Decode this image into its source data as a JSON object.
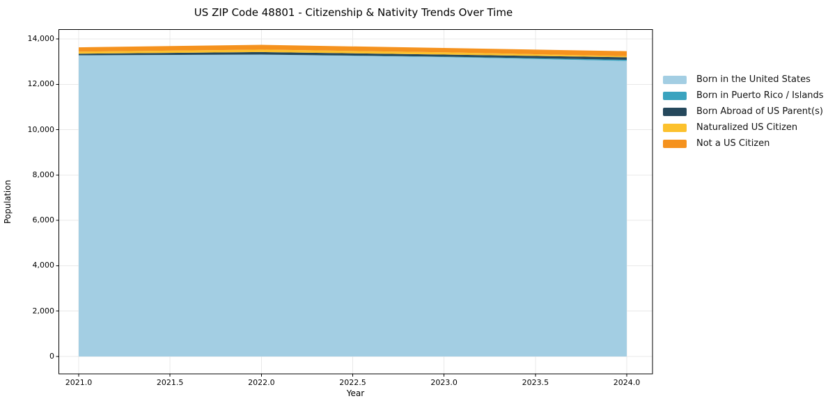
{
  "chart_data": {
    "type": "area",
    "stacked": true,
    "title": "US ZIP Code 48801 - Citizenship & Nativity Trends Over Time",
    "xlabel": "Year",
    "ylabel": "Population",
    "x": [
      2021,
      2022,
      2023,
      2024
    ],
    "series": [
      {
        "name": "Born in the United States",
        "color": "#a3cee3",
        "values": [
          13280,
          13310,
          13200,
          13030
        ]
      },
      {
        "name": "Born in Puerto Rico / Islands",
        "color": "#3aa3bf",
        "values": [
          0,
          0,
          20,
          50
        ]
      },
      {
        "name": "Born Abroad of US Parent(s)",
        "color": "#25485c",
        "values": [
          70,
          110,
          90,
          110
        ]
      },
      {
        "name": "Naturalized US Citizen",
        "color": "#fcc12d",
        "values": [
          90,
          110,
          100,
          50
        ]
      },
      {
        "name": "Not a US Citizen",
        "color": "#f5921e",
        "values": [
          190,
          210,
          190,
          220
        ]
      }
    ],
    "xtick_labels": [
      "2021.0",
      "2021.5",
      "2022.0",
      "2022.5",
      "2023.0",
      "2023.5",
      "2024.0"
    ],
    "xtick_values": [
      2021.0,
      2021.5,
      2022.0,
      2022.5,
      2023.0,
      2023.5,
      2024.0
    ],
    "ytick_labels": [
      "0",
      "2,000",
      "4,000",
      "6,000",
      "8,000",
      "10,000",
      "12,000",
      "14,000"
    ],
    "ytick_values": [
      0,
      2000,
      4000,
      6000,
      8000,
      10000,
      12000,
      14000
    ],
    "xlim": [
      2020.89,
      2024.14
    ],
    "ylim": [
      -770,
      14420
    ],
    "grid": true,
    "legend_position": "right"
  },
  "colors": {
    "grid": "#e8e8e8",
    "spine": "#000000",
    "text": "#000000",
    "background": "#ffffff"
  }
}
